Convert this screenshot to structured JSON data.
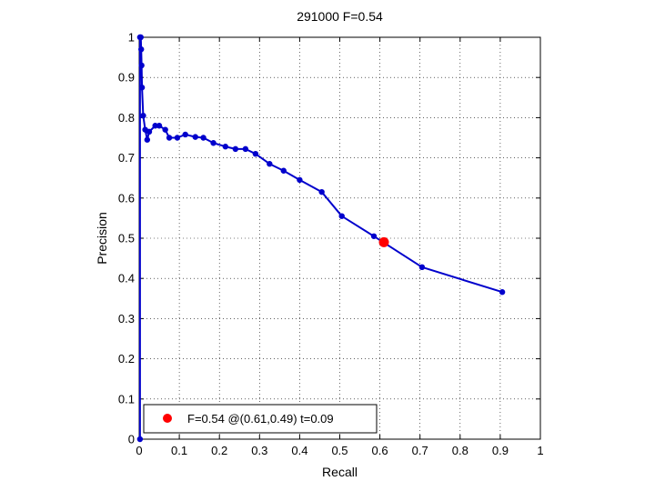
{
  "chart_data": {
    "type": "line",
    "title": "291000 F=0.54",
    "xlabel": "Recall",
    "ylabel": "Precision",
    "xlim": [
      0,
      1
    ],
    "ylim": [
      0,
      1
    ],
    "grid": true,
    "legend_position": "bottom-left",
    "x_ticks": [
      "0",
      "0.1",
      "0.2",
      "0.3",
      "0.4",
      "0.5",
      "0.6",
      "0.7",
      "0.8",
      "0.9",
      "1"
    ],
    "y_ticks": [
      "0",
      "0.1",
      "0.2",
      "0.3",
      "0.4",
      "0.5",
      "0.6",
      "0.7",
      "0.8",
      "0.9",
      "1"
    ],
    "series": [
      {
        "color": "#0000cc",
        "points": [
          [
            0.002,
            0.0
          ],
          [
            0.002,
            1.0
          ],
          [
            0.004,
            1.0
          ],
          [
            0.005,
            0.97
          ],
          [
            0.006,
            0.93
          ],
          [
            0.007,
            0.875
          ],
          [
            0.01,
            0.805
          ],
          [
            0.015,
            0.77
          ],
          [
            0.02,
            0.745
          ],
          [
            0.025,
            0.765
          ],
          [
            0.04,
            0.78
          ],
          [
            0.05,
            0.78
          ],
          [
            0.065,
            0.77
          ],
          [
            0.075,
            0.75
          ],
          [
            0.095,
            0.75
          ],
          [
            0.115,
            0.758
          ],
          [
            0.14,
            0.752
          ],
          [
            0.16,
            0.75
          ],
          [
            0.185,
            0.737
          ],
          [
            0.215,
            0.728
          ],
          [
            0.24,
            0.722
          ],
          [
            0.265,
            0.722
          ],
          [
            0.29,
            0.71
          ],
          [
            0.325,
            0.685
          ],
          [
            0.36,
            0.668
          ],
          [
            0.4,
            0.645
          ],
          [
            0.455,
            0.615
          ],
          [
            0.505,
            0.555
          ],
          [
            0.585,
            0.505
          ],
          [
            0.705,
            0.428
          ],
          [
            0.905,
            0.366
          ]
        ]
      }
    ],
    "highlight": {
      "x": 0.61,
      "y": 0.49,
      "color": "#ff0000"
    },
    "legend": [
      {
        "label": "F=0.54 @(0.61,0.49) t=0.09",
        "color": "#ff0000"
      }
    ]
  }
}
